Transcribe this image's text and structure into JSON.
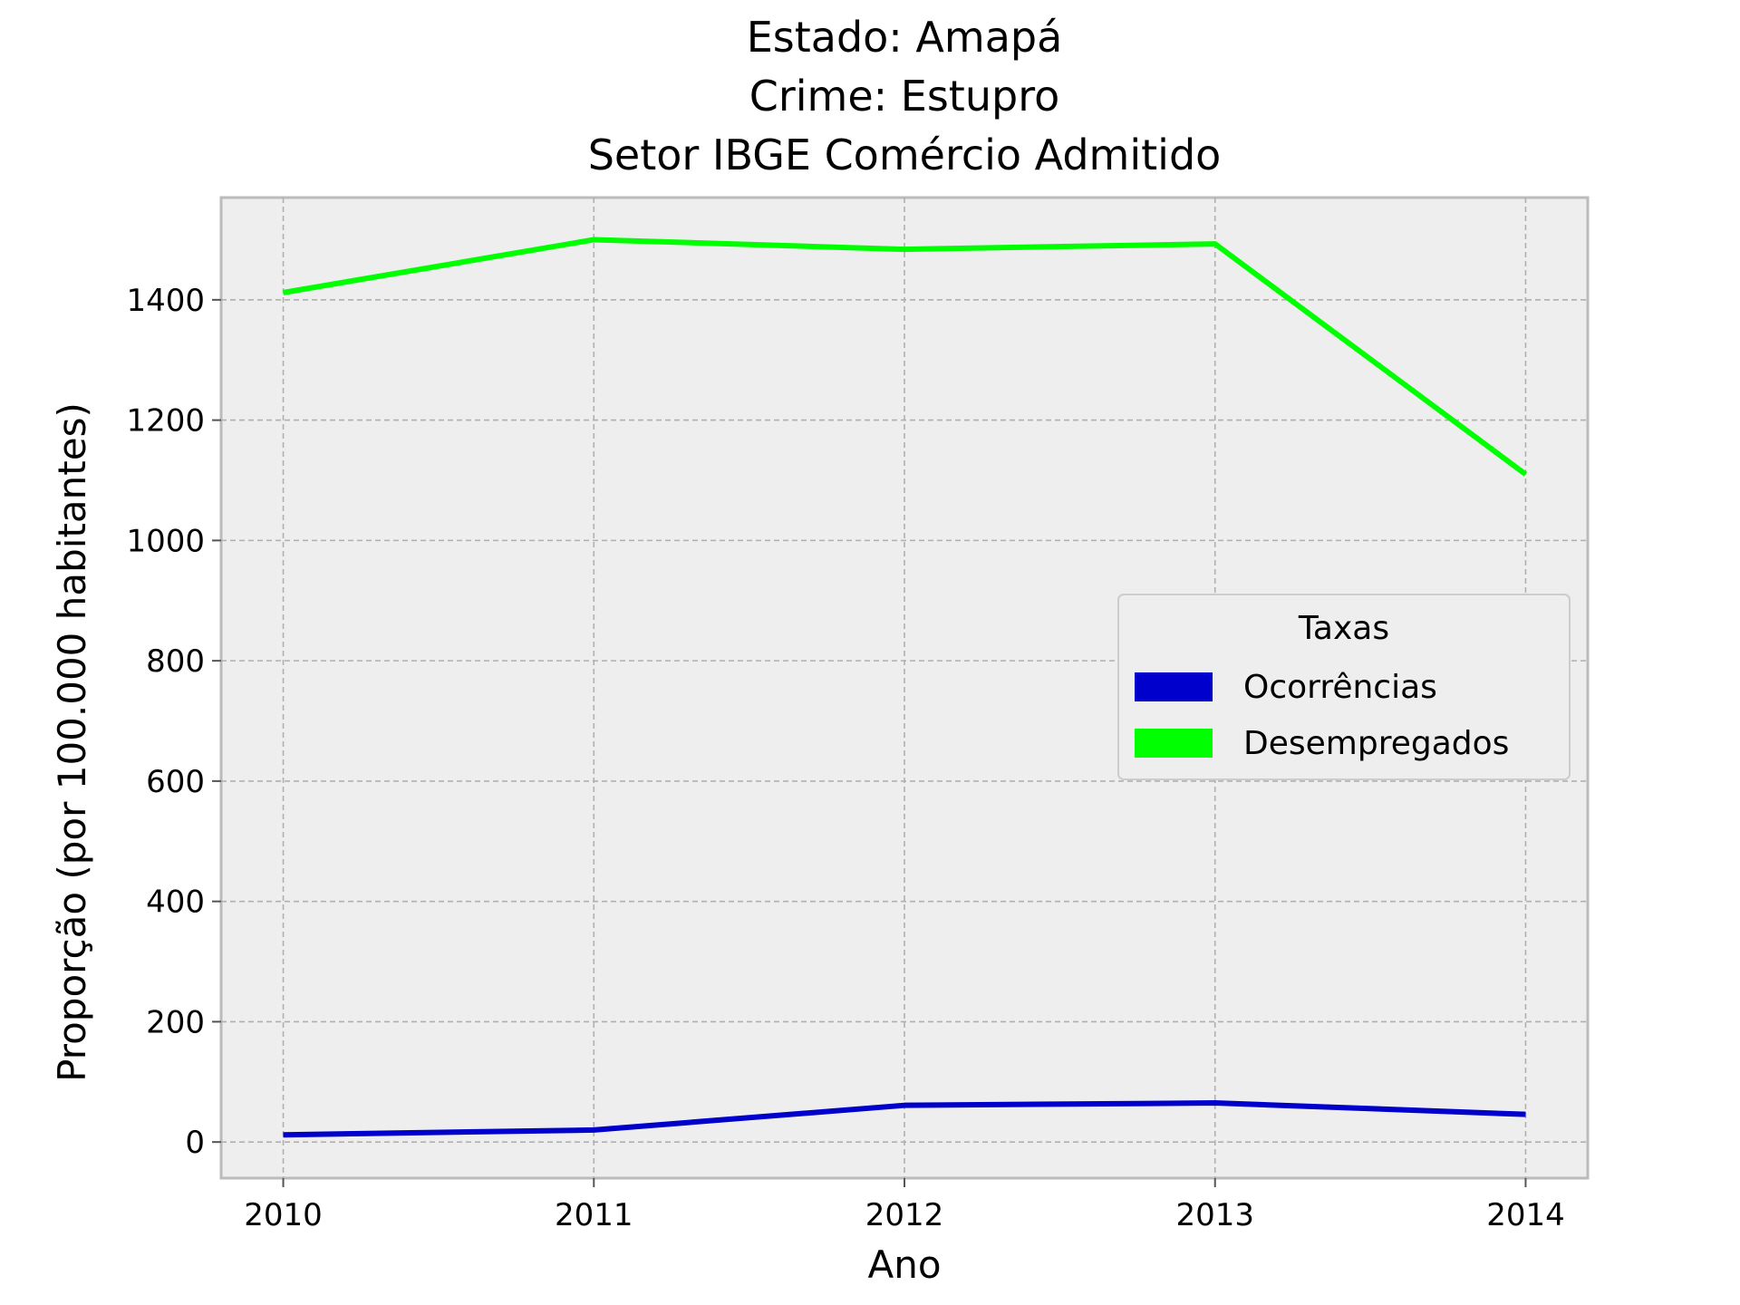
{
  "chart_data": {
    "type": "line",
    "title_lines": [
      "Estado: Amapá",
      "Crime: Estupro",
      "Setor IBGE  Comércio   Admitido"
    ],
    "xlabel": "Ano",
    "ylabel": "Proporção (por 100.000 habitantes)",
    "x": [
      2010,
      2011,
      2012,
      2013,
      2014
    ],
    "x_tick_labels": [
      "2010",
      "2011",
      "2012",
      "2013",
      "2014"
    ],
    "y_ticks": [
      0,
      200,
      400,
      600,
      800,
      1000,
      1200,
      1400
    ],
    "y_tick_labels": [
      "0",
      "200",
      "400",
      "600",
      "800",
      "1000",
      "1200",
      "1400"
    ],
    "xlim": [
      2009.8,
      2014.2
    ],
    "ylim": [
      -60,
      1570
    ],
    "grid": true,
    "legend": {
      "title": "Taxas",
      "placement": "center-right"
    },
    "series": [
      {
        "name": "Ocorrências",
        "color": "#0000cc",
        "values": [
          12,
          20,
          61,
          65,
          46
        ]
      },
      {
        "name": "Desempregados",
        "color": "#00ff00",
        "values": [
          1412,
          1500,
          1484,
          1493,
          1110
        ]
      }
    ]
  }
}
